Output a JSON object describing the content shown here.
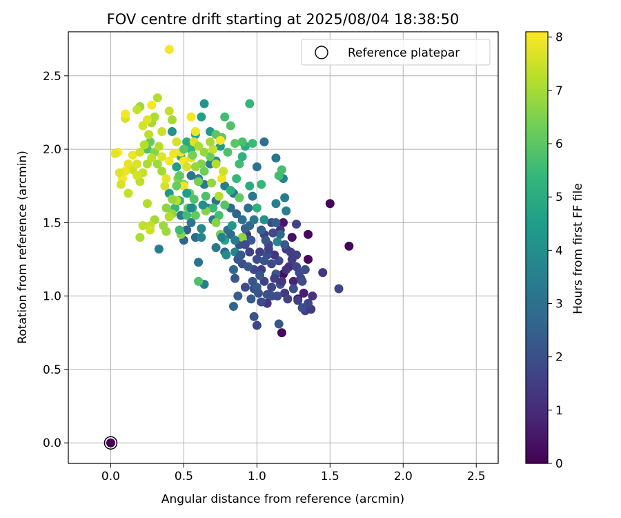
{
  "chart_data": {
    "type": "scatter",
    "title": "FOV centre drift starting at 2025/08/04 18:38:50",
    "xlabel": "Angular distance from reference (arcmin)",
    "ylabel": "Rotation from reference (arcmin)",
    "xlim": [
      -0.29,
      2.65
    ],
    "ylim": [
      -0.14,
      2.8
    ],
    "xticks": [
      "0.0",
      "0.5",
      "1.0",
      "1.5",
      "2.0",
      "2.5"
    ],
    "yticks": [
      "0.0",
      "0.5",
      "1.0",
      "1.5",
      "2.0",
      "2.5"
    ],
    "grid": true,
    "legend": {
      "position": "top-right",
      "entries": [
        "Reference platepar"
      ]
    },
    "colorbar": {
      "label": "Hours from first FF file",
      "range": [
        0,
        8.1
      ],
      "ticks": [
        "0",
        "1",
        "2",
        "3",
        "4",
        "5",
        "6",
        "7",
        "8"
      ],
      "colormap": "viridis"
    },
    "reference_point": {
      "x": 0.0,
      "y": 0.0
    },
    "points_xyc": [
      [
        0.0,
        0.0,
        0.0
      ],
      [
        1.5,
        1.63,
        0.1
      ],
      [
        1.63,
        1.34,
        0.1
      ],
      [
        1.35,
        1.42,
        0.2
      ],
      [
        1.35,
        1.25,
        0.2
      ],
      [
        1.17,
        0.75,
        0.2
      ],
      [
        1.18,
        1.15,
        0.3
      ],
      [
        1.28,
        0.98,
        0.3
      ],
      [
        1.24,
        1.4,
        0.4
      ],
      [
        1.18,
        1.5,
        0.5
      ],
      [
        1.32,
        1.02,
        0.7
      ],
      [
        1.25,
        1.1,
        0.8
      ],
      [
        1.45,
        1.16,
        1.3
      ],
      [
        1.56,
        1.05,
        1.7
      ],
      [
        1.33,
        0.9,
        1.5
      ],
      [
        1.37,
        0.91,
        1.4
      ],
      [
        1.38,
        1.0,
        1.2
      ],
      [
        1.3,
        1.12,
        1.6
      ],
      [
        1.27,
        1.28,
        1.6
      ],
      [
        1.27,
        1.49,
        1.6
      ],
      [
        1.22,
        1.2,
        1.1
      ],
      [
        1.2,
        1.32,
        1.4
      ],
      [
        1.16,
        1.45,
        1.2
      ],
      [
        1.1,
        1.5,
        1.8
      ],
      [
        1.15,
        1.24,
        1.9
      ],
      [
        1.12,
        1.28,
        1.3
      ],
      [
        1.08,
        1.35,
        1.7
      ],
      [
        1.05,
        1.42,
        1.5
      ],
      [
        1.02,
        1.3,
        1.6
      ],
      [
        1.0,
        1.25,
        1.9
      ],
      [
        0.98,
        1.18,
        1.8
      ],
      [
        0.95,
        1.3,
        1.6
      ],
      [
        0.93,
        1.42,
        1.4
      ],
      [
        0.9,
        1.22,
        1.9
      ],
      [
        0.88,
        1.35,
        2.0
      ],
      [
        0.85,
        1.12,
        2.2
      ],
      [
        0.87,
        1.0,
        2.4
      ],
      [
        0.84,
        0.93,
        2.6
      ],
      [
        0.98,
        0.86,
        2.1
      ],
      [
        1.0,
        0.8,
        1.7
      ],
      [
        1.15,
        0.81,
        2.2
      ],
      [
        1.1,
        1.0,
        2.0
      ],
      [
        1.07,
        0.95,
        1.3
      ],
      [
        1.05,
        1.1,
        1.6
      ],
      [
        0.98,
        1.05,
        1.9
      ],
      [
        1.03,
        1.18,
        1.5
      ],
      [
        0.96,
        1.38,
        2.3
      ],
      [
        0.92,
        1.46,
        2.5
      ],
      [
        0.9,
        1.52,
        3.0
      ],
      [
        0.86,
        1.56,
        2.6
      ],
      [
        0.82,
        1.6,
        2.8
      ],
      [
        0.78,
        1.3,
        2.7
      ],
      [
        0.8,
        1.45,
        2.9
      ],
      [
        0.84,
        1.7,
        3.2
      ],
      [
        0.78,
        1.75,
        3.4
      ],
      [
        0.72,
        1.65,
        3.1
      ],
      [
        0.7,
        1.52,
        3.3
      ],
      [
        0.66,
        1.6,
        3.6
      ],
      [
        0.62,
        1.46,
        3.8
      ],
      [
        0.58,
        1.4,
        2.7
      ],
      [
        0.55,
        1.5,
        3.2
      ],
      [
        0.52,
        1.45,
        2.5
      ],
      [
        0.5,
        1.38,
        2.6
      ],
      [
        0.48,
        1.55,
        3.4
      ],
      [
        0.6,
        1.23,
        3.1
      ],
      [
        0.64,
        1.08,
        3.5
      ],
      [
        0.94,
        1.6,
        3.0
      ],
      [
        0.97,
        1.68,
        3.3
      ],
      [
        1.0,
        1.88,
        3.1
      ],
      [
        1.05,
        2.05,
        3.0
      ],
      [
        1.13,
        1.94,
        3.2
      ],
      [
        1.18,
        1.8,
        3.6
      ],
      [
        1.19,
        1.67,
        3.4
      ],
      [
        1.13,
        1.63,
        3.5
      ],
      [
        1.05,
        1.52,
        4.1
      ],
      [
        1.14,
        1.37,
        3.7
      ],
      [
        1.2,
        1.58,
        3.5
      ],
      [
        0.33,
        1.32,
        3.5
      ],
      [
        0.55,
        1.82,
        3.2
      ],
      [
        0.6,
        1.8,
        3.6
      ],
      [
        0.64,
        1.76,
        3.3
      ],
      [
        0.68,
        1.9,
        3.5
      ],
      [
        0.72,
        1.92,
        4.0
      ],
      [
        0.75,
        2.02,
        4.4
      ],
      [
        0.68,
        2.12,
        4.3
      ],
      [
        0.64,
        2.31,
        4.2
      ],
      [
        0.62,
        2.22,
        4.6
      ],
      [
        0.58,
        2.1,
        4.8
      ],
      [
        0.55,
        2.0,
        5.2
      ],
      [
        0.52,
        2.05,
        4.9
      ],
      [
        0.48,
        1.95,
        5.0
      ],
      [
        0.45,
        1.88,
        4.5
      ],
      [
        0.42,
        2.12,
        4.1
      ],
      [
        0.4,
        1.7,
        4.3
      ],
      [
        0.44,
        1.6,
        5.4
      ],
      [
        0.47,
        1.65,
        5.2
      ],
      [
        0.52,
        1.55,
        5.6
      ],
      [
        0.56,
        1.6,
        5.3
      ],
      [
        0.65,
        1.68,
        5.8
      ],
      [
        0.7,
        1.6,
        5.5
      ],
      [
        0.74,
        1.55,
        5.7
      ],
      [
        0.78,
        1.62,
        5.9
      ],
      [
        0.82,
        1.72,
        5.1
      ],
      [
        0.86,
        1.8,
        5.4
      ],
      [
        0.88,
        1.9,
        5.6
      ],
      [
        0.9,
        1.95,
        5.2
      ],
      [
        0.92,
        2.02,
        5.0
      ],
      [
        0.95,
        2.31,
        5.3
      ],
      [
        0.97,
        2.04,
        5.5
      ],
      [
        0.9,
        2.05,
        5.7
      ],
      [
        0.85,
        2.04,
        6.0
      ],
      [
        0.8,
        1.98,
        5.8
      ],
      [
        0.76,
        2.08,
        6.1
      ],
      [
        0.78,
        2.22,
        5.6
      ],
      [
        0.82,
        2.16,
        5.8
      ],
      [
        0.72,
        2.1,
        6.0
      ],
      [
        0.68,
        1.95,
        6.2
      ],
      [
        0.64,
        1.85,
        6.3
      ],
      [
        0.6,
        1.78,
        6.4
      ],
      [
        0.58,
        1.55,
        6.1
      ],
      [
        0.54,
        1.7,
        6.2
      ],
      [
        0.5,
        1.76,
        6.3
      ],
      [
        0.46,
        1.8,
        6.5
      ],
      [
        0.42,
        1.56,
        6.8
      ],
      [
        0.38,
        1.6,
        6.7
      ],
      [
        0.36,
        1.48,
        6.9
      ],
      [
        0.6,
        1.1,
        5.8
      ],
      [
        0.75,
        1.42,
        6.4
      ],
      [
        0.72,
        1.5,
        6.6
      ],
      [
        0.9,
        1.4,
        6.7
      ],
      [
        0.88,
        1.67,
        6.1
      ],
      [
        1.03,
        1.76,
        5.4
      ],
      [
        1.15,
        1.82,
        5.6
      ],
      [
        1.17,
        1.86,
        5.7
      ],
      [
        1.0,
        1.6,
        5.2
      ],
      [
        0.95,
        1.75,
        5.0
      ],
      [
        0.25,
        2.0,
        5.8
      ],
      [
        0.27,
        2.05,
        6.2
      ],
      [
        0.3,
        1.98,
        6.6
      ],
      [
        0.32,
        1.9,
        6.9
      ],
      [
        0.35,
        1.85,
        7.0
      ],
      [
        0.33,
        2.02,
        7.2
      ],
      [
        0.28,
        1.94,
        7.3
      ],
      [
        0.25,
        1.9,
        7.1
      ],
      [
        0.22,
        1.84,
        7.4
      ],
      [
        0.2,
        1.78,
        7.3
      ],
      [
        0.18,
        1.82,
        7.6
      ],
      [
        0.15,
        1.86,
        7.5
      ],
      [
        0.12,
        1.9,
        7.8
      ],
      [
        0.1,
        1.85,
        7.9
      ],
      [
        0.08,
        1.8,
        8.0
      ],
      [
        0.06,
        1.84,
        7.7
      ],
      [
        0.05,
        1.98,
        8.1
      ],
      [
        0.03,
        1.97,
        7.8
      ],
      [
        0.07,
        1.76,
        7.6
      ],
      [
        0.12,
        1.7,
        7.4
      ],
      [
        0.15,
        1.96,
        7.9
      ],
      [
        0.18,
        1.9,
        7.7
      ],
      [
        0.2,
        1.98,
        7.5
      ],
      [
        0.23,
        2.03,
        7.2
      ],
      [
        0.26,
        2.1,
        7.3
      ],
      [
        0.28,
        2.18,
        7.0
      ],
      [
        0.3,
        2.22,
        7.1
      ],
      [
        0.32,
        2.35,
        7.2
      ],
      [
        0.35,
        2.12,
        7.5
      ],
      [
        0.4,
        2.26,
        7.4
      ],
      [
        0.42,
        2.2,
        7.0
      ],
      [
        0.2,
        2.29,
        6.9
      ],
      [
        0.18,
        2.27,
        7.4
      ],
      [
        0.1,
        2.21,
        7.6
      ],
      [
        0.1,
        2.24,
        8.0
      ],
      [
        0.22,
        2.16,
        7.6
      ],
      [
        0.25,
        2.2,
        7.7
      ],
      [
        0.28,
        2.3,
        8.0
      ],
      [
        0.4,
        2.68,
        8.0
      ],
      [
        0.45,
        2.05,
        7.6
      ],
      [
        0.48,
        1.98,
        7.9
      ],
      [
        0.5,
        1.92,
        8.0
      ],
      [
        0.52,
        1.88,
        7.6
      ],
      [
        0.55,
        1.94,
        7.8
      ],
      [
        0.57,
        2.05,
        7.7
      ],
      [
        0.58,
        2.12,
        7.9
      ],
      [
        0.55,
        2.22,
        8.0
      ],
      [
        0.5,
        1.75,
        7.9
      ],
      [
        0.45,
        1.65,
        7.2
      ],
      [
        0.42,
        1.66,
        6.8
      ],
      [
        0.4,
        1.54,
        7.2
      ],
      [
        0.38,
        1.44,
        6.9
      ],
      [
        0.3,
        1.52,
        7.0
      ],
      [
        0.27,
        1.48,
        7.4
      ],
      [
        0.25,
        1.63,
        7.2
      ],
      [
        0.22,
        1.48,
        7.3
      ],
      [
        0.2,
        1.4,
        7.1
      ],
      [
        0.27,
        1.45,
        7.5
      ],
      [
        0.37,
        1.75,
        7.6
      ],
      [
        0.35,
        1.95,
        7.7
      ],
      [
        0.4,
        1.92,
        8.0
      ],
      [
        0.43,
        1.97,
        7.9
      ],
      [
        0.38,
        1.8,
        7.8
      ],
      [
        0.48,
        1.42,
        6.6
      ],
      [
        0.47,
        1.45,
        5.5
      ],
      [
        0.65,
        1.58,
        6.6
      ],
      [
        0.69,
        1.77,
        6.8
      ],
      [
        0.74,
        1.68,
        7.2
      ],
      [
        0.76,
        1.8,
        7.9
      ],
      [
        0.77,
        1.85,
        7.5
      ],
      [
        0.75,
        2.06,
        8.0
      ],
      [
        0.7,
        2.0,
        7.4
      ],
      [
        0.72,
        1.9,
        7.2
      ],
      [
        0.68,
        2.05,
        7.0
      ],
      [
        0.64,
        1.98,
        6.8
      ],
      [
        0.6,
        2.02,
        7.1
      ],
      [
        0.62,
        1.9,
        6.5
      ],
      [
        0.58,
        1.88,
        6.8
      ],
      [
        0.56,
        1.96,
        6.4
      ],
      [
        0.5,
        2.0,
        6.0
      ],
      [
        0.47,
        1.82,
        6.1
      ],
      [
        0.45,
        1.75,
        6.2
      ],
      [
        0.53,
        1.6,
        6.0
      ],
      [
        0.57,
        1.66,
        5.8
      ],
      [
        0.52,
        1.7,
        4.5
      ],
      [
        0.55,
        1.6,
        3.8
      ],
      [
        0.63,
        1.62,
        4.0
      ],
      [
        0.62,
        1.4,
        3.7
      ],
      [
        0.83,
        1.48,
        4.3
      ],
      [
        0.78,
        1.38,
        4.7
      ],
      [
        0.79,
        1.28,
        3.9
      ],
      [
        0.85,
        1.3,
        3.7
      ],
      [
        0.87,
        1.25,
        2.2
      ],
      [
        0.84,
        1.18,
        2.7
      ],
      [
        0.89,
        1.28,
        2.3
      ],
      [
        0.92,
        1.35,
        1.9
      ],
      [
        0.95,
        1.48,
        2.7
      ],
      [
        0.98,
        1.52,
        3.3
      ],
      [
        1.03,
        1.45,
        2.5
      ],
      [
        1.06,
        1.38,
        2.2
      ],
      [
        1.07,
        1.28,
        2.0
      ],
      [
        1.1,
        1.22,
        1.8
      ],
      [
        1.13,
        1.15,
        2.3
      ],
      [
        1.16,
        1.08,
        2.2
      ],
      [
        1.19,
        1.02,
        1.4
      ],
      [
        1.21,
        0.98,
        1.6
      ],
      [
        1.25,
        1.05,
        2.0
      ],
      [
        1.27,
        1.2,
        1.7
      ],
      [
        1.23,
        1.3,
        1.5
      ],
      [
        1.19,
        1.35,
        2.3
      ],
      [
        1.16,
        1.42,
        2.8
      ],
      [
        1.13,
        1.5,
        2.4
      ],
      [
        1.11,
        1.43,
        1.8
      ],
      [
        1.08,
        1.32,
        1.6
      ],
      [
        1.05,
        1.24,
        2.1
      ],
      [
        1.02,
        1.14,
        2.2
      ],
      [
        1.0,
        1.06,
        2.4
      ],
      [
        0.97,
        1.1,
        2.1
      ],
      [
        0.94,
        1.2,
        2.3
      ],
      [
        0.92,
        1.06,
        1.9
      ],
      [
        0.96,
        0.98,
        2.3
      ],
      [
        1.01,
        1.02,
        2.1
      ],
      [
        1.03,
        0.96,
        1.8
      ],
      [
        1.07,
        1.01,
        2.0
      ],
      [
        1.1,
        1.06,
        1.7
      ],
      [
        1.12,
        1.12,
        1.5
      ],
      [
        1.14,
        1.0,
        1.9
      ],
      [
        1.17,
        1.1,
        1.3
      ],
      [
        1.2,
        1.18,
        1.2
      ],
      [
        1.24,
        1.25,
        1.5
      ],
      [
        1.29,
        1.16,
        1.8
      ],
      [
        1.31,
        1.1,
        1.9
      ],
      [
        1.33,
        1.18,
        2.0
      ],
      [
        1.35,
        0.95,
        1.7
      ],
      [
        1.31,
        0.92,
        1.9
      ],
      [
        1.28,
        0.97,
        1.5
      ],
      [
        0.82,
        1.42,
        2.8
      ],
      [
        0.85,
        1.38,
        3.4
      ],
      [
        0.76,
        1.4,
        3.6
      ],
      [
        0.72,
        1.33,
        3.3
      ]
    ]
  }
}
